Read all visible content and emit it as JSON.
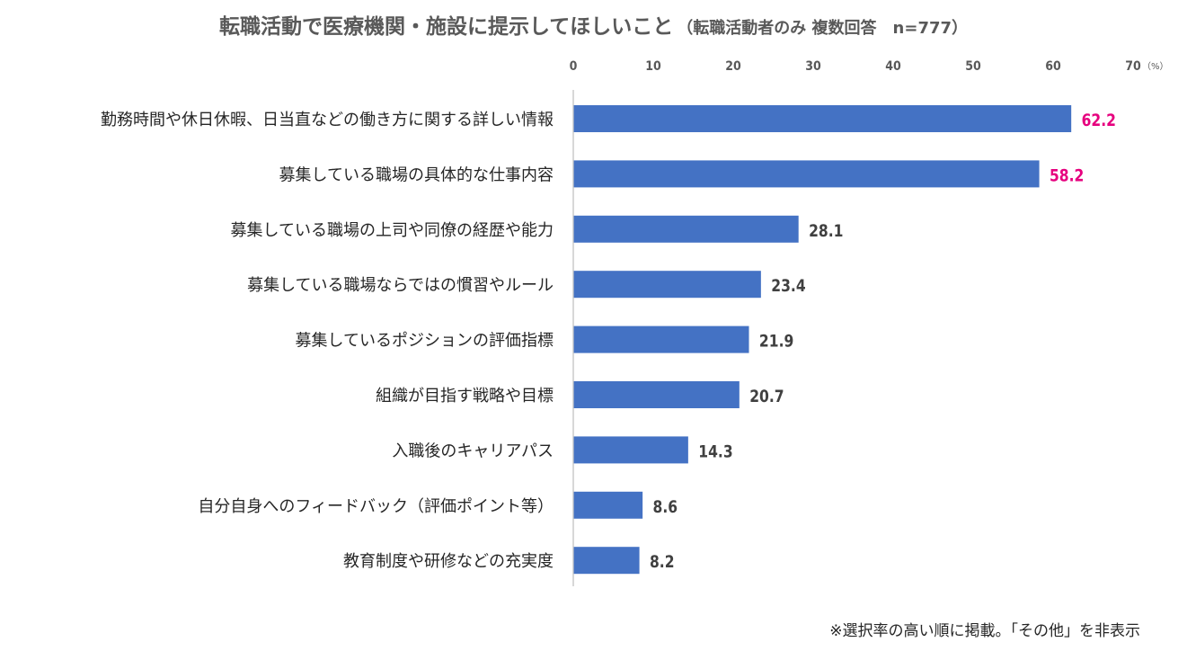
{
  "chart_data": {
    "type": "bar",
    "orientation": "horizontal",
    "title": "転職活動で医療機関・施設に提示してほしいこと",
    "subtitle": "（転職活動者のみ 複数回答　n=777）",
    "categories": [
      "勤務時間や休日休暇、日当直などの働き方に関する詳しい情報",
      "募集している職場の具体的な仕事内容",
      "募集している職場の上司や同僚の経歴や能力",
      "募集している職場ならではの慣習やルール",
      "募集しているポジションの評価指標",
      "組織が目指す戦略や目標",
      "入職後のキャリアパス",
      "自分自身へのフィードバック（評価ポイント等）",
      "教育制度や研修などの充実度"
    ],
    "values": [
      62.2,
      58.2,
      28.1,
      23.4,
      21.9,
      20.7,
      14.3,
      8.6,
      8.2
    ],
    "value_labels": [
      "62.2",
      "58.2",
      "28.1",
      "23.4",
      "21.9",
      "20.7",
      "14.3",
      "8.6",
      "8.2"
    ],
    "xlim": [
      0,
      70
    ],
    "ticks": [
      0,
      10,
      20,
      30,
      40,
      50,
      60,
      70
    ],
    "tick_labels": [
      "0",
      "10",
      "20",
      "30",
      "40",
      "50",
      "60",
      "70"
    ],
    "unit": "（%）",
    "axis_position": "top",
    "grid": false,
    "legend": "none",
    "bar_color": "#4472C4",
    "label_color": "#404040",
    "highlight_color": "#E6007E",
    "highlight_count": 2
  },
  "footnote": "※選択率の高い順に掲載。「その他」を非表示"
}
